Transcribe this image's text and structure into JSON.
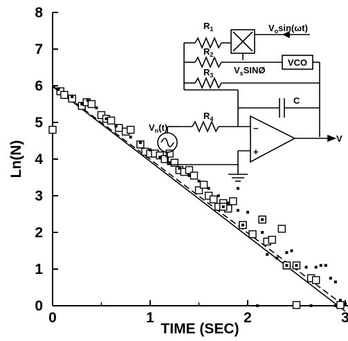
{
  "chart_data": {
    "type": "scatter",
    "xlabel": "TIME (SEC)",
    "ylabel": "Ln(N)",
    "xlim": [
      0,
      3
    ],
    "ylim": [
      0,
      8
    ],
    "x_ticks": [
      "0",
      "1",
      "2",
      "3"
    ],
    "y_ticks": [
      "0",
      "1",
      "2",
      "3",
      "4",
      "5",
      "6",
      "7",
      "8"
    ],
    "grid": false,
    "legend": "none",
    "series": [
      {
        "marker": "open-square",
        "points": [
          [
            0.0,
            4.8
          ],
          [
            0.08,
            5.85
          ],
          [
            0.12,
            5.75
          ],
          [
            0.2,
            5.65
          ],
          [
            0.3,
            5.45
          ],
          [
            0.35,
            5.55
          ],
          [
            0.4,
            5.5
          ],
          [
            0.5,
            5.2
          ],
          [
            0.55,
            5.1
          ],
          [
            0.6,
            5.05
          ],
          [
            0.68,
            4.85
          ],
          [
            0.75,
            4.75
          ],
          [
            0.8,
            4.8
          ],
          [
            0.9,
            4.4
          ],
          [
            0.95,
            4.2
          ],
          [
            1.0,
            4.15
          ],
          [
            1.05,
            4.15
          ],
          [
            1.1,
            4.1
          ],
          [
            1.15,
            4.0
          ],
          [
            1.2,
            4.15
          ],
          [
            1.25,
            3.9
          ],
          [
            1.3,
            3.7
          ],
          [
            1.35,
            3.65
          ],
          [
            1.4,
            3.7
          ],
          [
            1.45,
            3.55
          ],
          [
            1.5,
            3.15
          ],
          [
            1.55,
            3.3
          ],
          [
            1.6,
            3.0
          ],
          [
            1.65,
            2.9
          ],
          [
            1.7,
            2.7
          ],
          [
            1.75,
            2.8
          ],
          [
            1.8,
            2.65
          ],
          [
            1.85,
            2.85
          ],
          [
            1.95,
            2.2
          ],
          [
            2.05,
            1.95
          ],
          [
            2.15,
            2.35
          ],
          [
            2.2,
            1.75
          ],
          [
            2.25,
            1.8
          ],
          [
            2.35,
            2.1
          ],
          [
            2.4,
            1.1
          ],
          [
            2.5,
            1.1
          ],
          [
            2.65,
            0.75
          ],
          [
            2.7,
            0.7
          ],
          [
            2.95,
            0.02
          ],
          [
            2.5,
            0.02
          ]
        ]
      },
      {
        "marker": "dot-in-square",
        "points": [
          [
            1.95,
            2.2
          ],
          [
            2.15,
            2.35
          ],
          [
            2.4,
            1.1
          ],
          [
            1.75,
            2.7
          ]
        ]
      },
      {
        "marker": "small-filled-square",
        "points": [
          [
            0.06,
            5.9
          ],
          [
            0.2,
            5.7
          ],
          [
            0.3,
            5.5
          ],
          [
            0.36,
            5.6
          ],
          [
            0.45,
            5.4
          ],
          [
            0.55,
            5.1
          ],
          [
            0.65,
            4.9
          ],
          [
            0.8,
            4.6
          ],
          [
            0.9,
            4.45
          ],
          [
            1.0,
            4.25
          ],
          [
            1.1,
            4.05
          ],
          [
            1.2,
            3.9
          ],
          [
            1.3,
            3.75
          ],
          [
            1.4,
            3.55
          ],
          [
            1.5,
            3.4
          ],
          [
            1.6,
            3.2
          ],
          [
            1.7,
            3.0
          ],
          [
            1.8,
            2.8
          ],
          [
            1.9,
            2.6
          ],
          [
            2.0,
            2.55
          ],
          [
            2.15,
            2.0
          ],
          [
            2.2,
            1.4
          ],
          [
            2.3,
            1.3
          ],
          [
            2.4,
            1.45
          ],
          [
            2.45,
            1.5
          ],
          [
            2.5,
            1.1
          ],
          [
            2.6,
            1.05
          ],
          [
            2.7,
            1.05
          ],
          [
            2.75,
            1.1
          ],
          [
            2.8,
            1.1
          ],
          [
            2.85,
            0.75
          ],
          [
            2.9,
            0.65
          ],
          [
            2.95,
            0.15
          ],
          [
            3.0,
            0.05
          ],
          [
            2.1,
            0.0
          ],
          [
            2.65,
            0.0
          ],
          [
            2.9,
            0.0
          ],
          [
            1.9,
            3.2
          ]
        ]
      }
    ],
    "fit_lines": [
      {
        "style": "solid",
        "x": [
          0,
          3
        ],
        "y": [
          5.98,
          -0.15
        ]
      },
      {
        "style": "dashed",
        "x": [
          0,
          3
        ],
        "y": [
          6.0,
          -0.02
        ]
      }
    ],
    "inset_circuit": {
      "labels": {
        "r1": "R",
        "r1_sub": "1",
        "r2": "R",
        "r2_sub": "2",
        "r3": "R",
        "r3_sub": "3",
        "r4": "R",
        "r4_sub": "4",
        "vo_v": "V",
        "vo_sub": "o",
        "vo_rest": "sin(ωt)",
        "vs_v": "V",
        "vs_sub": "s",
        "vs_rest": "SINØ",
        "vco": "VCO",
        "cap": "C",
        "vn_v": "V",
        "vn_sub": "n",
        "vn_rest": "(t)",
        "vout": "V",
        "minus": "−",
        "plus": "+"
      }
    }
  }
}
